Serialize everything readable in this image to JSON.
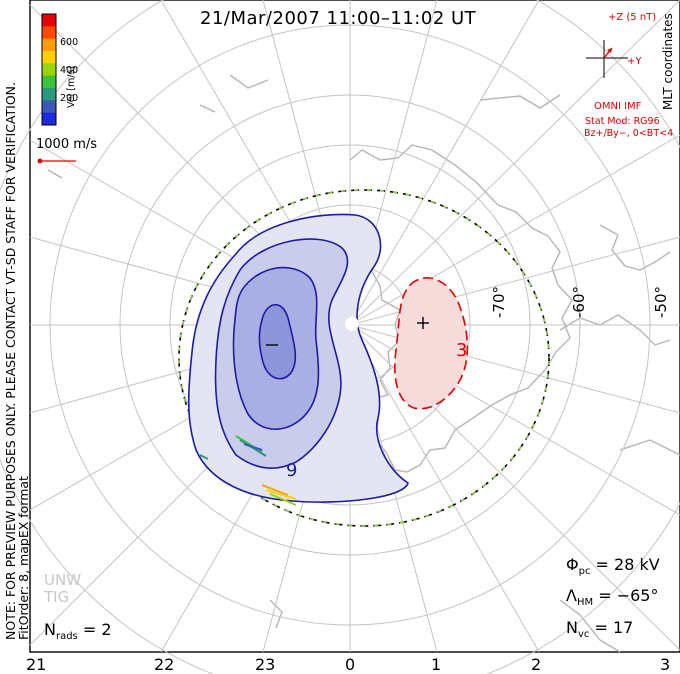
{
  "title": "21/Mar/2007 11:00–11:02 UT",
  "side_note_line1": "NOTE: FOR PREVIEW PURPOSES ONLY. PLEASE CONTACT VT-SD STAFF FOR VERIFICATION.",
  "side_note_line2": "FitOrder: 8, mapEX format",
  "coordinate_label": "MLT coordinates",
  "velocity_scale": {
    "label": "Vel [m/s]",
    "ticks": [
      "600",
      "400",
      "200"
    ],
    "colors": [
      "#e80000",
      "#ff4a00",
      "#ff9c00",
      "#ffd000",
      "#9ad400",
      "#3cc23c",
      "#2a9a7a",
      "#3a5ab8",
      "#1a2adc"
    ]
  },
  "reference_vector": "1000 m/s",
  "imf": {
    "bz_label": "+Z (5 nT)",
    "by_label": "+Y",
    "source": "OMNI IMF",
    "stat_mod": "Stat Mod: RG96",
    "conditions": "Bz+/By−, 0<BT<4"
  },
  "mlt_labels": [
    "21",
    "22",
    "23",
    "0",
    "1",
    "2",
    "3"
  ],
  "lat_labels": [
    "-70°",
    "-60°",
    "-50°"
  ],
  "potential": {
    "phi_symbol": "Φ",
    "phi_sub": "pc",
    "phi_value": "= 28 kV",
    "lambda_symbol": "Λ",
    "lambda_sub": "HM",
    "lambda_value": "= −65°",
    "n_symbol": "N",
    "n_sub": "vc",
    "n_value": "= 17"
  },
  "nrads": {
    "symbol": "N",
    "sub": "rads",
    "value": "= 2"
  },
  "watermark_line1": "UNW",
  "watermark_line2": "TIG",
  "contour_labels": {
    "negative": "9",
    "positive": "3"
  },
  "cell_markers": {
    "min": "−",
    "max": "+"
  }
}
